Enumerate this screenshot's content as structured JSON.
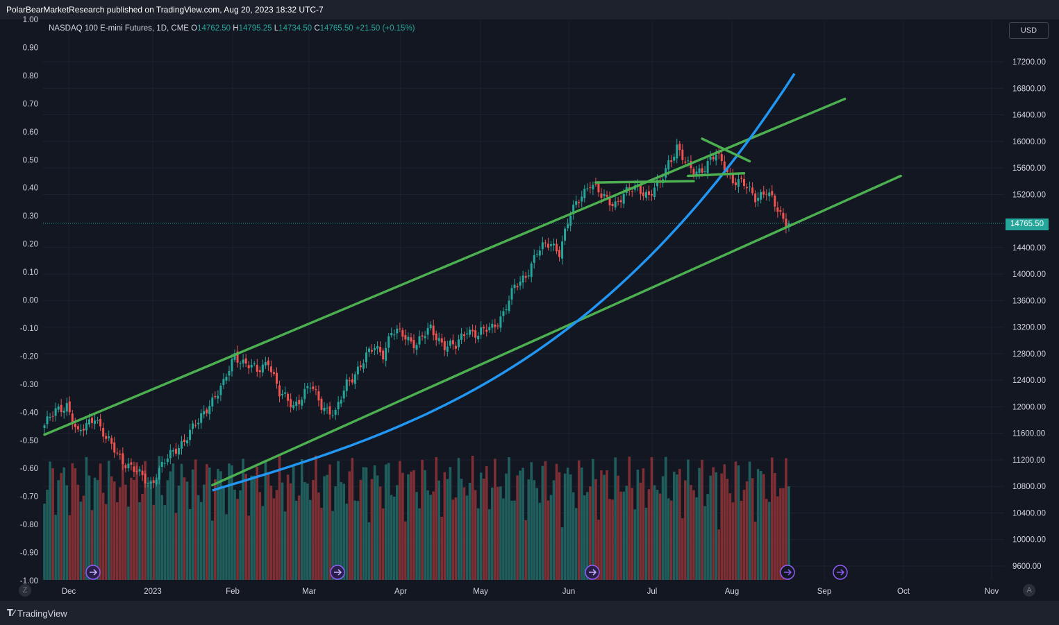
{
  "header": {
    "published_text": "PolarBearMarketResearch published on TradingView.com, Aug 20, 2023 18:32 UTC-7"
  },
  "legend": {
    "symbol": "NASDAQ 100 E-mini Futures, 1D, CME",
    "o_label": "O",
    "o_value": "14762.50",
    "h_label": "H",
    "h_value": "14795.25",
    "l_label": "L",
    "l_value": "14734.50",
    "c_label": "C",
    "c_value": "14765.50",
    "change": "+21.50 (+0.15%)"
  },
  "currency_button": "USD",
  "last_price_tag": "14765.50",
  "footer": {
    "brand": "TradingView"
  },
  "buttons": {
    "z": "Z",
    "a": "A"
  },
  "colors": {
    "up": "#26a69a",
    "down": "#ef5350",
    "trendline": "#4caf50",
    "curve": "#2196f3",
    "background": "#131722"
  },
  "chart_data": {
    "type": "candlestick",
    "symbol": "NASDAQ 100 E-mini Futures",
    "interval": "1D",
    "last_price": 14765.5,
    "right_axis": {
      "ticks": [
        17200,
        16800,
        16400,
        16000,
        15600,
        15200,
        14400,
        14000,
        13600,
        13200,
        12800,
        12400,
        12000,
        11600,
        11200,
        10800,
        10400,
        10000,
        9600
      ],
      "labels": [
        "17200.00",
        "16800.00",
        "16400.00",
        "16000.00",
        "15600.00",
        "15200.00",
        "14400.00",
        "14000.00",
        "13600.00",
        "13200.00",
        "12800.00",
        "12400.00",
        "12000.00",
        "11600.00",
        "11200.00",
        "10800.00",
        "10400.00",
        "10000.00",
        "9600.00"
      ]
    },
    "left_axis": {
      "labels": [
        "1.00",
        "0.90",
        "0.80",
        "0.70",
        "0.60",
        "0.50",
        "0.40",
        "0.30",
        "0.20",
        "0.10",
        "0.00",
        "-0.10",
        "-0.20",
        "-0.30",
        "-0.40",
        "-0.50",
        "-0.60",
        "-0.70",
        "-0.80",
        "-0.90",
        "-1.00"
      ]
    },
    "time_axis": [
      "Dec",
      "2023",
      "Feb",
      "Mar",
      "Apr",
      "May",
      "Jun",
      "Jul",
      "Aug",
      "Sep",
      "Oct",
      "Nov"
    ],
    "anchors": [
      {
        "t": 0,
        "c": 11720
      },
      {
        "t": 4,
        "c": 11920
      },
      {
        "t": 8,
        "c": 12050
      },
      {
        "t": 12,
        "c": 11560
      },
      {
        "t": 18,
        "c": 11880
      },
      {
        "t": 22,
        "c": 11500
      },
      {
        "t": 27,
        "c": 11250
      },
      {
        "t": 34,
        "c": 10960
      },
      {
        "t": 38,
        "c": 10850
      },
      {
        "t": 41,
        "c": 11050
      },
      {
        "t": 48,
        "c": 11420
      },
      {
        "t": 55,
        "c": 11760
      },
      {
        "t": 59,
        "c": 12070
      },
      {
        "t": 64,
        "c": 12320
      },
      {
        "t": 68,
        "c": 12800
      },
      {
        "t": 71,
        "c": 12680
      },
      {
        "t": 76,
        "c": 12520
      },
      {
        "t": 80,
        "c": 12720
      },
      {
        "t": 84,
        "c": 12180
      },
      {
        "t": 89,
        "c": 12030
      },
      {
        "t": 95,
        "c": 12300
      },
      {
        "t": 99,
        "c": 12040
      },
      {
        "t": 104,
        "c": 11880
      },
      {
        "t": 108,
        "c": 12350
      },
      {
        "t": 112,
        "c": 12580
      },
      {
        "t": 118,
        "c": 12900
      },
      {
        "t": 121,
        "c": 12820
      },
      {
        "t": 124,
        "c": 13120
      },
      {
        "t": 128,
        "c": 13080
      },
      {
        "t": 133,
        "c": 12960
      },
      {
        "t": 138,
        "c": 13160
      },
      {
        "t": 143,
        "c": 12940
      },
      {
        "t": 147,
        "c": 12890
      },
      {
        "t": 151,
        "c": 13190
      },
      {
        "t": 155,
        "c": 13080
      },
      {
        "t": 160,
        "c": 13200
      },
      {
        "t": 164,
        "c": 13420
      },
      {
        "t": 168,
        "c": 13780
      },
      {
        "t": 172,
        "c": 14000
      },
      {
        "t": 176,
        "c": 14320
      },
      {
        "t": 181,
        "c": 14480
      },
      {
        "t": 184,
        "c": 14350
      },
      {
        "t": 188,
        "c": 14880
      },
      {
        "t": 192,
        "c": 15220
      },
      {
        "t": 195,
        "c": 15380
      },
      {
        "t": 199,
        "c": 15160
      },
      {
        "t": 204,
        "c": 15080
      },
      {
        "t": 208,
        "c": 15210
      },
      {
        "t": 212,
        "c": 15330
      },
      {
        "t": 216,
        "c": 15180
      },
      {
        "t": 220,
        "c": 15360
      },
      {
        "t": 223,
        "c": 15700
      },
      {
        "t": 226,
        "c": 15920
      },
      {
        "t": 229,
        "c": 15650
      },
      {
        "t": 232,
        "c": 15540
      },
      {
        "t": 236,
        "c": 15620
      },
      {
        "t": 240,
        "c": 15780
      },
      {
        "t": 243,
        "c": 15650
      },
      {
        "t": 246,
        "c": 15420
      },
      {
        "t": 250,
        "c": 15330
      },
      {
        "t": 254,
        "c": 15180
      },
      {
        "t": 258,
        "c": 15240
      },
      {
        "t": 261,
        "c": 15020
      },
      {
        "t": 264,
        "c": 14840
      },
      {
        "t": 266,
        "c": 14765
      }
    ],
    "annotations": [
      {
        "type": "channel_upper",
        "from": {
          "t": 0,
          "p": 11580
        },
        "to": {
          "t": 286,
          "p": 16640
        }
      },
      {
        "type": "channel_lower",
        "from": {
          "t": 60,
          "p": 10820
        },
        "to": {
          "t": 306,
          "p": 15480
        }
      },
      {
        "type": "curve",
        "from": {
          "t": 60,
          "p": 10740
        },
        "to": {
          "t": 268,
          "p": 17020
        }
      },
      {
        "type": "horizontal",
        "from": {
          "t": 197,
          "p": 15380
        },
        "to": {
          "t": 232,
          "p": 15400
        }
      },
      {
        "type": "horizontal",
        "from": {
          "t": 230,
          "p": 15480
        },
        "to": {
          "t": 250,
          "p": 15520
        }
      },
      {
        "type": "downtrend",
        "from": {
          "t": 235,
          "p": 16040
        },
        "to": {
          "t": 252,
          "p": 15700
        }
      }
    ]
  }
}
